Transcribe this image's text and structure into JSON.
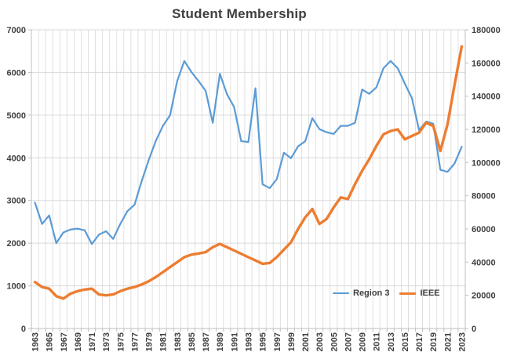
{
  "title": "Student Membership",
  "chart_data": {
    "type": "line",
    "title": "Student Membership",
    "x": [
      1963,
      1964,
      1965,
      1966,
      1967,
      1968,
      1969,
      1970,
      1971,
      1972,
      1973,
      1974,
      1975,
      1976,
      1977,
      1978,
      1979,
      1980,
      1981,
      1982,
      1983,
      1984,
      1985,
      1986,
      1987,
      1988,
      1989,
      1990,
      1991,
      1992,
      1993,
      1994,
      1995,
      1996,
      1997,
      1998,
      1999,
      2000,
      2001,
      2002,
      2003,
      2004,
      2005,
      2006,
      2007,
      2008,
      2009,
      2010,
      2011,
      2012,
      2013,
      2014,
      2015,
      2016,
      2017,
      2018,
      2019,
      2020,
      2021,
      2022,
      2023
    ],
    "x_label_step": 2,
    "left_axis": {
      "min": 0,
      "max": 7000,
      "step": 1000,
      "ticks": [
        0,
        1000,
        2000,
        3000,
        4000,
        5000,
        6000,
        7000
      ]
    },
    "right_axis": {
      "min": 0,
      "max": 180000,
      "step": 20000,
      "ticks": [
        0,
        20000,
        40000,
        60000,
        80000,
        100000,
        120000,
        140000,
        160000,
        180000
      ]
    },
    "grid": {
      "horizontal": true,
      "vertical": true,
      "color": "#D9D9D9"
    },
    "axis_line_color": "#BFBFBF",
    "text_color": "#404040",
    "legend_position": "inside-bottom-right",
    "series": [
      {
        "name": "Region 3",
        "axis": "left",
        "color": "#5B9BD5",
        "stroke_width": 2.2,
        "values": [
          2950,
          2450,
          2650,
          2000,
          2250,
          2320,
          2340,
          2300,
          1980,
          2200,
          2280,
          2100,
          2450,
          2750,
          2900,
          3450,
          3950,
          4400,
          4750,
          5000,
          5800,
          6270,
          6010,
          5800,
          5570,
          4820,
          5970,
          5490,
          5190,
          4390,
          4370,
          5630,
          3380,
          3290,
          3500,
          4120,
          3990,
          4270,
          4390,
          4930,
          4670,
          4600,
          4560,
          4750,
          4750,
          4820,
          5600,
          5500,
          5650,
          6100,
          6270,
          6100,
          5740,
          5400,
          4650,
          4850,
          4800,
          3720,
          3670,
          3870,
          4260
        ]
      },
      {
        "name": "IEEE",
        "axis": "right",
        "color": "#ED7D31",
        "stroke_width": 3.4,
        "values": [
          28000,
          25000,
          24000,
          19500,
          18000,
          21000,
          22500,
          23500,
          24000,
          20500,
          20000,
          20500,
          22500,
          24000,
          25000,
          26500,
          28500,
          31000,
          34000,
          37000,
          40000,
          43000,
          44500,
          45200,
          46000,
          49000,
          51000,
          49000,
          47000,
          45000,
          43000,
          41000,
          39000,
          39500,
          43000,
          47500,
          52000,
          60000,
          67000,
          72000,
          63000,
          66000,
          73000,
          79000,
          78000,
          87000,
          95000,
          102000,
          110000,
          117000,
          119000,
          120000,
          114000,
          116000,
          118000,
          124000,
          122000,
          107000,
          123000,
          147000,
          170000
        ]
      }
    ]
  }
}
